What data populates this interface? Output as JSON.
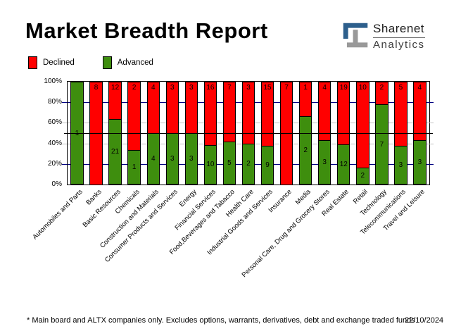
{
  "title": "Market Breadth Report",
  "logo": {
    "name": "Sharenet",
    "division": "Analytics"
  },
  "legend": {
    "declined": "Declined",
    "advanced": "Advanced"
  },
  "colors": {
    "declined": "#ff0000",
    "advanced": "#3e8e0e",
    "logo_blue": "#2d5f8c",
    "logo_gray": "#999999",
    "grid_navy": "#000080",
    "grid_silver": "#c0c0c0",
    "mid_line": "#000000"
  },
  "chart_data": {
    "type": "bar",
    "stacked": true,
    "title": "Market Breadth Report",
    "xlabel": "",
    "ylabel": "",
    "ylim": [
      0,
      100
    ],
    "unit": "percent of companies, advanced vs declined counts shown as bar labels",
    "yticks": [
      "100%",
      "80%",
      "60%",
      "40%",
      "20%",
      "0%"
    ],
    "legend_position": "top-left",
    "categories": [
      "Automobiles and Parts",
      "Banks",
      "Basic Resources",
      "Chemicals",
      "Construction and Materials",
      "Consumer Products and Services",
      "Energy",
      "Financial Services",
      "Food,Beverages and Tabacco",
      "Health Care",
      "Industrial Goods and Services",
      "Insurance",
      "Media",
      "Personal Care, Drug and Grocery Stores",
      "Real Estate",
      "Retail",
      "Technology",
      "Telecommunications",
      "Travel and Leisure"
    ],
    "series": [
      {
        "name": "Advanced",
        "color": "#3e8e0e",
        "values": [
          1,
          0,
          21,
          1,
          4,
          3,
          3,
          10,
          5,
          2,
          9,
          0,
          2,
          3,
          12,
          2,
          7,
          3,
          3
        ]
      },
      {
        "name": "Declined",
        "color": "#ff0000",
        "values": [
          0,
          8,
          12,
          2,
          4,
          3,
          3,
          16,
          7,
          3,
          15,
          7,
          1,
          4,
          19,
          10,
          2,
          5,
          4
        ]
      }
    ],
    "gridlines": [
      {
        "value": 80,
        "color": "#000080"
      },
      {
        "value": 60,
        "color": "#c0c0c0"
      },
      {
        "value": 40,
        "color": "#c0c0c0"
      },
      {
        "value": 20,
        "color": "#000080"
      }
    ],
    "mid_line": {
      "value": 50,
      "color": "#000000"
    }
  },
  "footer": {
    "note": "* Main board and ALTX companies only. Excludes options, warrants, derivatives, debt and exchange traded funds",
    "date": "22/10/2024"
  }
}
